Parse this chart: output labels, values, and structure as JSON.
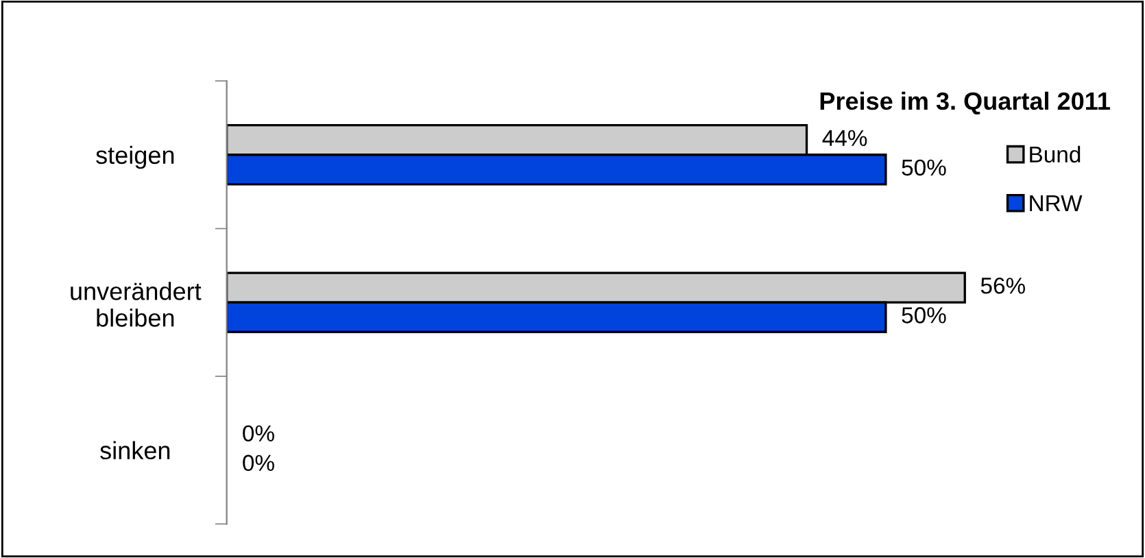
{
  "chart_data": {
    "type": "bar",
    "orientation": "horizontal",
    "title": "Preise im 3. Quartal 2011",
    "categories": [
      "steigen",
      "unverändert\nbleiben",
      "sinken"
    ],
    "series": [
      {
        "name": "Bund",
        "color": "#cccccc",
        "values": [
          44,
          56,
          0
        ],
        "value_labels": [
          "44%",
          "56%",
          "0%"
        ]
      },
      {
        "name": "NRW",
        "color": "#0044dd",
        "values": [
          50,
          50,
          0
        ],
        "value_labels": [
          "50%",
          "50%",
          "0%"
        ]
      }
    ],
    "legend": "right",
    "grid": false
  }
}
